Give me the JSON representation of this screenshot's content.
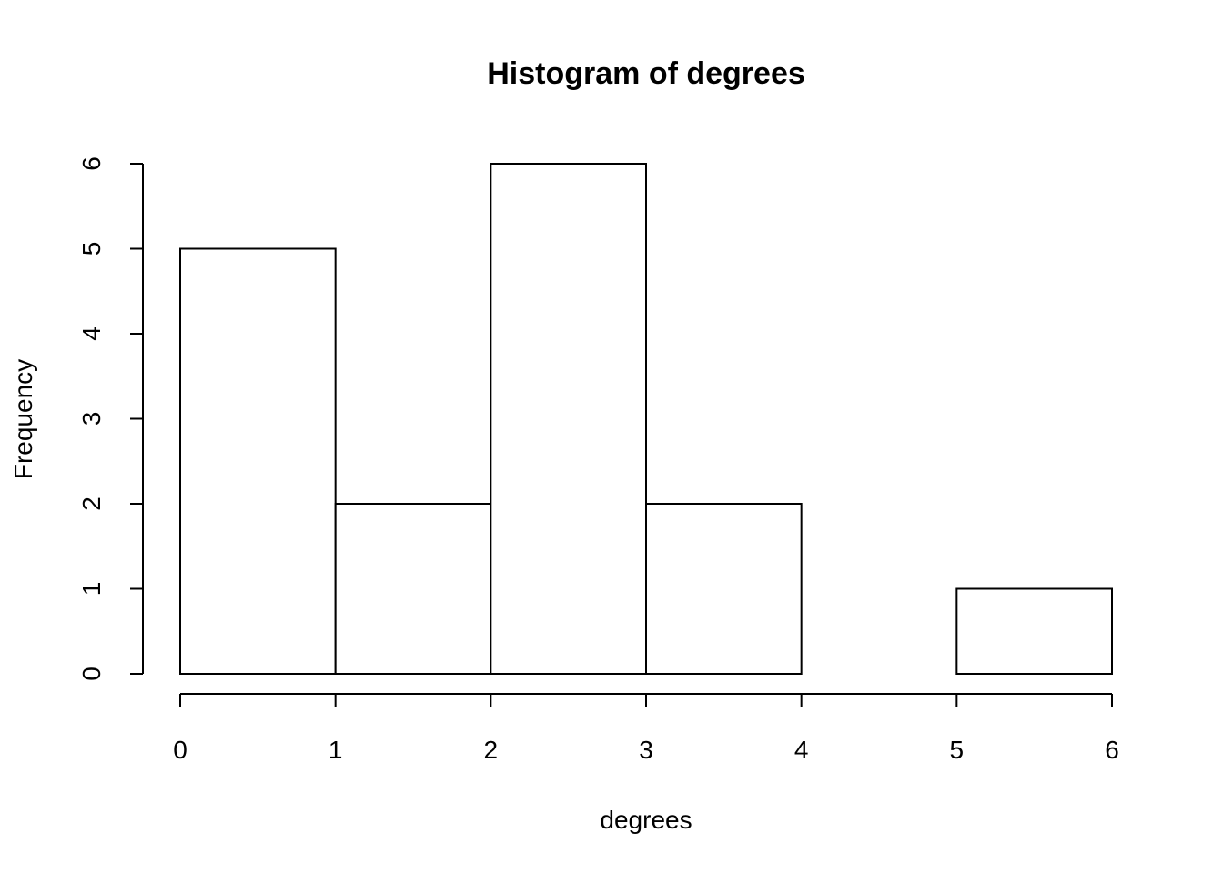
{
  "chart_data": {
    "type": "histogram",
    "title": "Histogram of degrees",
    "x_label": "degrees",
    "y_label": "Frequency",
    "bins": [
      0,
      1,
      2,
      3,
      4,
      5,
      6
    ],
    "counts": [
      5,
      2,
      6,
      2,
      0,
      1
    ],
    "color": "#ffffff",
    "edge_color": "#000000",
    "xlim": [
      0,
      6
    ],
    "ylim": [
      0,
      6
    ],
    "xticks": [
      0,
      1,
      2,
      3,
      4,
      5,
      6
    ],
    "yticks": [
      0,
      1,
      2,
      3,
      4,
      5,
      6
    ]
  }
}
